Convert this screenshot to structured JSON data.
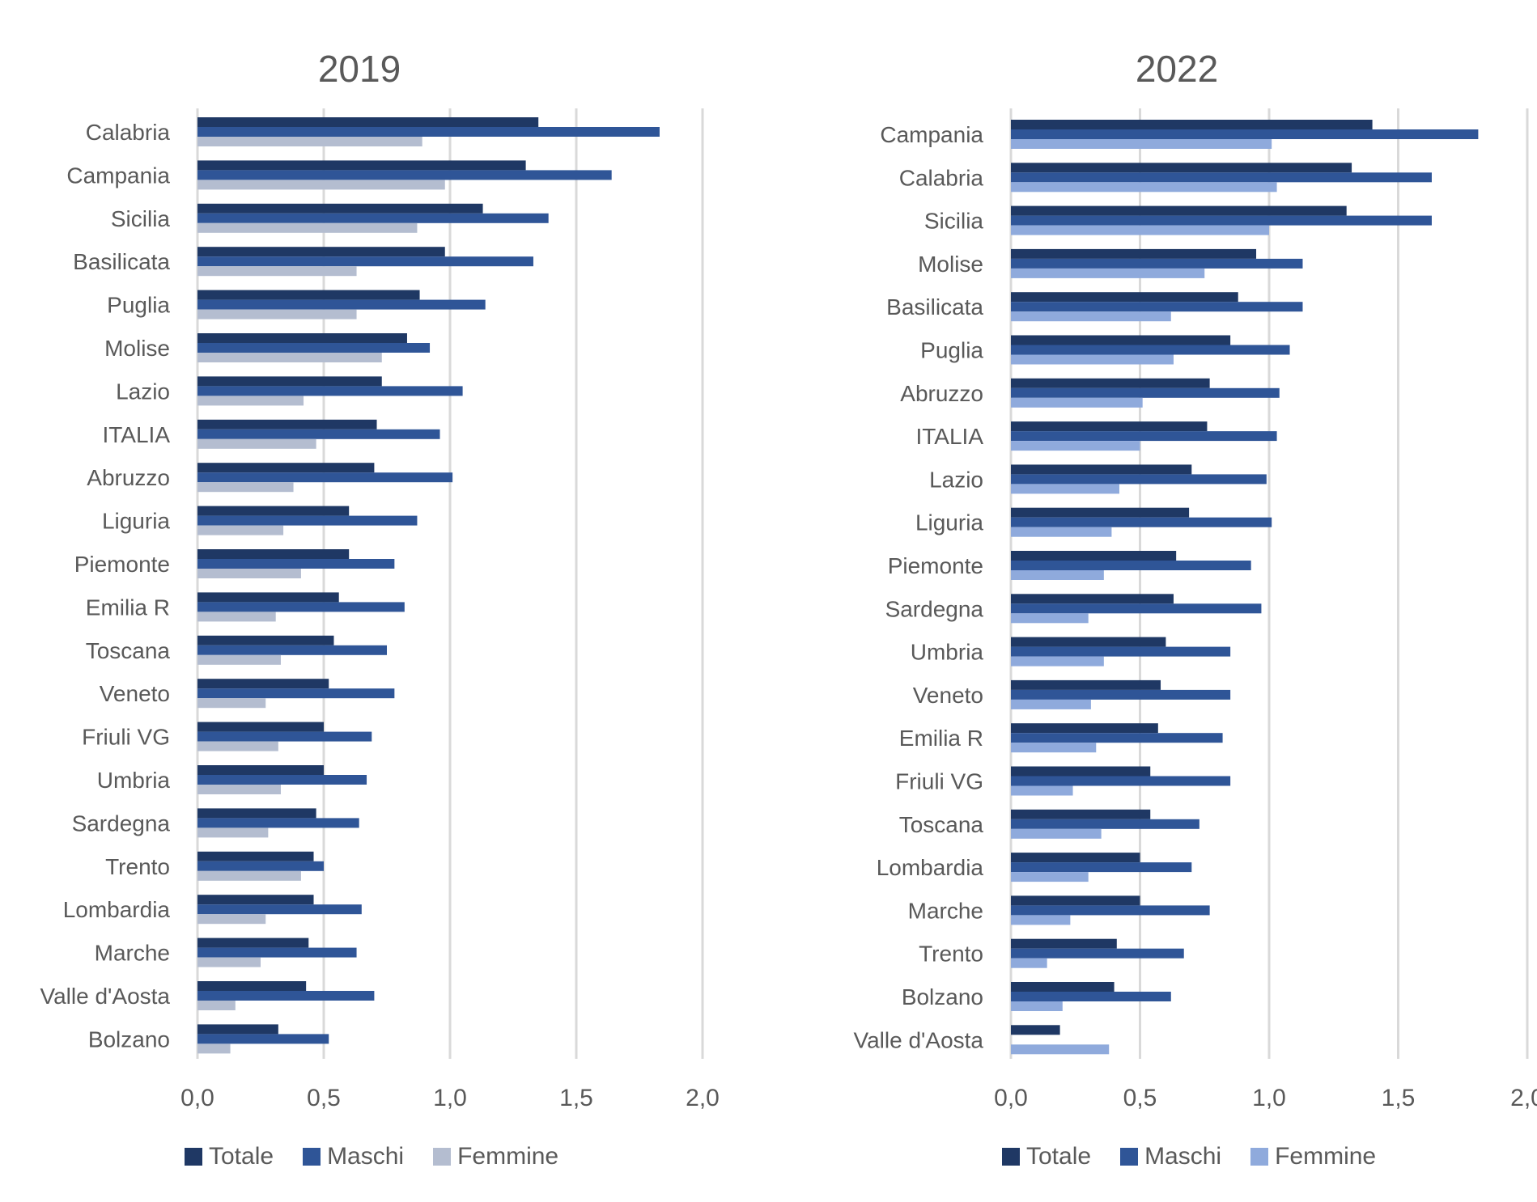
{
  "colors": {
    "totale": "#1f3864",
    "maschi": "#2f5597",
    "femmine_2019": "#b4bdd0",
    "femmine_2022": "#8faadc",
    "grid": "#d9d9d9",
    "text": "#595959"
  },
  "legend": {
    "totale": "Totale",
    "maschi": "Maschi",
    "femmine": "Femmine"
  },
  "chart_data": [
    {
      "type": "bar",
      "orientation": "horizontal",
      "title": "2019",
      "xlim": [
        0,
        2.0
      ],
      "xticks": [
        "0,0",
        "0,5",
        "1,0",
        "1,5",
        "2,0"
      ],
      "grid": true,
      "legend_position": "bottom",
      "categories": [
        "Calabria",
        "Campania",
        "Sicilia",
        "Basilicata",
        "Puglia",
        "Molise",
        "Lazio",
        "ITALIA",
        "Abruzzo",
        "Liguria",
        "Piemonte",
        "Emilia R",
        "Toscana",
        "Veneto",
        "Friuli VG",
        "Umbria",
        "Sardegna",
        "Trento",
        "Lombardia",
        "Marche",
        "Valle d'Aosta",
        "Bolzano"
      ],
      "series": [
        {
          "name": "Totale",
          "values": [
            1.35,
            1.3,
            1.13,
            0.98,
            0.88,
            0.83,
            0.73,
            0.71,
            0.7,
            0.6,
            0.6,
            0.56,
            0.54,
            0.52,
            0.5,
            0.5,
            0.47,
            0.46,
            0.46,
            0.44,
            0.43,
            0.32
          ]
        },
        {
          "name": "Maschi",
          "values": [
            1.83,
            1.64,
            1.39,
            1.33,
            1.14,
            0.92,
            1.05,
            0.96,
            1.01,
            0.87,
            0.78,
            0.82,
            0.75,
            0.78,
            0.69,
            0.67,
            0.64,
            0.5,
            0.65,
            0.63,
            0.7,
            0.52
          ]
        },
        {
          "name": "Femmine",
          "values": [
            0.89,
            0.98,
            0.87,
            0.63,
            0.63,
            0.73,
            0.42,
            0.47,
            0.38,
            0.34,
            0.41,
            0.31,
            0.33,
            0.27,
            0.32,
            0.33,
            0.28,
            0.41,
            0.27,
            0.25,
            0.15,
            0.13
          ]
        }
      ]
    },
    {
      "type": "bar",
      "orientation": "horizontal",
      "title": "2022",
      "xlim": [
        0,
        2.0
      ],
      "xticks": [
        "0,0",
        "0,5",
        "1,0",
        "1,5",
        "2,0"
      ],
      "grid": true,
      "legend_position": "bottom",
      "categories": [
        "Campania",
        "Calabria",
        "Sicilia",
        "Molise",
        "Basilicata",
        "Puglia",
        "Abruzzo",
        "ITALIA",
        "Lazio",
        "Liguria",
        "Piemonte",
        "Sardegna",
        "Umbria",
        "Veneto",
        "Emilia R",
        "Friuli VG",
        "Toscana",
        "Lombardia",
        "Marche",
        "Trento",
        "Bolzano",
        "Valle d'Aosta"
      ],
      "series": [
        {
          "name": "Totale",
          "values": [
            1.4,
            1.32,
            1.3,
            0.95,
            0.88,
            0.85,
            0.77,
            0.76,
            0.7,
            0.69,
            0.64,
            0.63,
            0.6,
            0.58,
            0.57,
            0.54,
            0.54,
            0.5,
            0.5,
            0.41,
            0.4,
            0.19
          ]
        },
        {
          "name": "Maschi",
          "values": [
            1.81,
            1.63,
            1.63,
            1.13,
            1.13,
            1.08,
            1.04,
            1.03,
            0.99,
            1.01,
            0.93,
            0.97,
            0.85,
            0.85,
            0.82,
            0.85,
            0.73,
            0.7,
            0.77,
            0.67,
            0.62,
            0
          ]
        },
        {
          "name": "Femmine",
          "values": [
            1.01,
            1.03,
            1.0,
            0.75,
            0.62,
            0.63,
            0.51,
            0.5,
            0.42,
            0.39,
            0.36,
            0.3,
            0.36,
            0.31,
            0.33,
            0.24,
            0.35,
            0.3,
            0.23,
            0.14,
            0.2,
            0.38
          ]
        }
      ]
    }
  ]
}
